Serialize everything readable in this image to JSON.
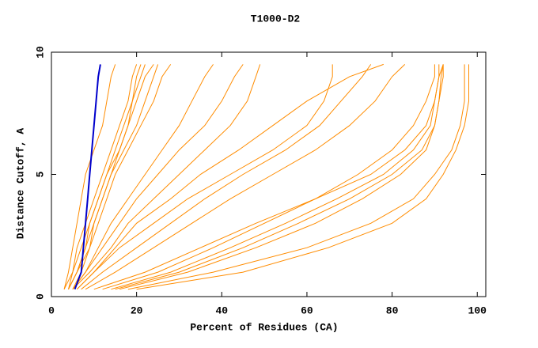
{
  "chart_data": {
    "type": "line",
    "orientation": "horizontal",
    "title": "T1000-D2",
    "x_label": "Percent of Residues (CA)",
    "y_label": "Distance Cutoff, A",
    "y": [
      0.3,
      1,
      2,
      3,
      4,
      5,
      6,
      7,
      8,
      9,
      9.5
    ],
    "xlim": [
      0,
      102
    ],
    "xticks": [
      0,
      20,
      40,
      60,
      80,
      100
    ],
    "ylim": [
      0,
      10
    ],
    "yticks": [
      0,
      5,
      10
    ],
    "series": [
      {
        "color": "#ff8c00",
        "values": [
          15,
          30,
          45,
          58,
          70,
          80,
          87,
          90,
          91,
          92,
          92
        ]
      },
      {
        "color": "#ff8c00",
        "values": [
          16,
          32,
          48,
          62,
          73,
          82,
          88,
          90,
          91,
          91.5,
          92
        ]
      },
      {
        "color": "#ff8c00",
        "values": [
          14,
          28,
          42,
          55,
          67,
          78,
          85,
          89,
          90,
          91,
          91
        ]
      },
      {
        "color": "#ff8c00",
        "values": [
          18,
          38,
          60,
          75,
          85,
          90,
          94,
          96,
          97,
          97,
          97
        ]
      },
      {
        "color": "#ff8c00",
        "values": [
          20,
          45,
          65,
          80,
          88,
          92,
          95,
          97,
          98,
          98,
          98
        ]
      },
      {
        "color": "#ff8c00",
        "values": [
          12,
          25,
          38,
          50,
          62,
          72,
          80,
          85,
          88,
          90,
          90
        ]
      },
      {
        "color": "#ff8c00",
        "values": [
          10,
          22,
          35,
          48,
          62,
          75,
          83,
          88,
          90,
          91,
          92
        ]
      },
      {
        "color": "#ff8c00",
        "values": [
          8,
          15,
          24,
          33,
          42,
          52,
          62,
          70,
          76,
          80,
          83
        ]
      },
      {
        "color": "#ff8c00",
        "values": [
          7,
          12,
          20,
          28,
          36,
          45,
          55,
          63,
          68,
          73,
          75
        ]
      },
      {
        "color": "#ff8c00",
        "values": [
          6,
          10,
          16,
          24,
          32,
          42,
          52,
          60,
          64,
          66,
          66
        ]
      },
      {
        "color": "#ff8c00",
        "values": [
          6,
          10,
          15,
          20,
          28,
          35,
          44,
          52,
          60,
          70,
          78
        ]
      },
      {
        "color": "#ff8c00",
        "values": [
          5,
          9,
          14,
          18,
          24,
          30,
          36,
          42,
          46,
          48,
          49
        ]
      },
      {
        "color": "#ff8c00",
        "values": [
          5,
          8,
          12,
          16,
          20,
          25,
          30,
          36,
          40,
          43,
          45
        ]
      },
      {
        "color": "#ff8c00",
        "values": [
          5,
          8,
          11,
          14,
          18,
          22,
          26,
          30,
          33,
          36,
          38
        ]
      },
      {
        "color": "#ff8c00",
        "values": [
          4,
          6,
          9,
          11,
          13,
          15,
          18,
          21,
          24,
          26,
          28
        ]
      },
      {
        "color": "#ff8c00",
        "values": [
          4,
          6,
          8,
          10,
          12,
          14,
          17,
          20,
          22,
          24,
          25
        ]
      },
      {
        "color": "#ff8c00",
        "values": [
          4,
          5,
          7,
          9,
          11,
          13,
          15,
          17,
          19,
          21,
          22
        ]
      },
      {
        "color": "#ff8c00",
        "values": [
          3,
          5,
          6,
          8,
          10,
          12,
          14,
          16,
          18,
          19,
          20
        ]
      },
      {
        "color": "#ff8c00",
        "values": [
          5,
          7,
          9,
          10,
          12,
          14,
          16,
          18,
          20,
          22,
          24
        ]
      },
      {
        "color": "#ff8c00",
        "values": [
          3,
          4,
          5,
          6,
          7,
          8,
          10,
          12,
          13,
          14,
          15
        ]
      },
      {
        "color": "#ff8c00",
        "values": [
          4,
          6,
          8,
          9,
          11,
          13,
          16,
          18,
          19,
          20,
          21
        ]
      },
      {
        "color": "#0000cc",
        "values": [
          5.5,
          7,
          7.5,
          8,
          8.5,
          9,
          9.5,
          10,
          10.5,
          11,
          11.5
        ]
      }
    ]
  }
}
